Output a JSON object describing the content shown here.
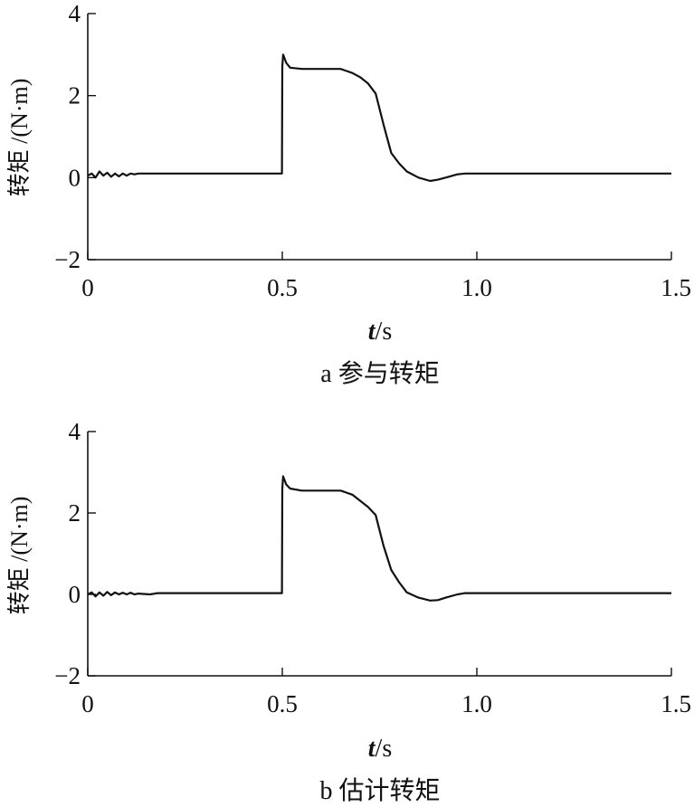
{
  "chart_data": [
    {
      "type": "line",
      "caption": "a 参与转矩",
      "xlabel_var": "t",
      "xlabel_unit": "/s",
      "ylabel": "转矩 /(N·m)",
      "xlim": [
        0,
        1.5
      ],
      "ylim": [
        -2,
        4
      ],
      "x_ticks": [
        0,
        0.5,
        1.0,
        1.5
      ],
      "x_tick_labels": [
        "0",
        "0.5",
        "1.0",
        "1.5"
      ],
      "y_ticks": [
        -2,
        0,
        2,
        4
      ],
      "y_tick_labels": [
        "−2",
        "0",
        "2",
        "4"
      ],
      "series": [
        {
          "x": [
            0,
            0.01,
            0.02,
            0.03,
            0.04,
            0.05,
            0.06,
            0.07,
            0.08,
            0.09,
            0.1,
            0.11,
            0.12,
            0.13,
            0.15,
            0.3,
            0.499,
            0.5,
            0.502,
            0.51,
            0.52,
            0.55,
            0.6,
            0.65,
            0.68,
            0.7,
            0.72,
            0.74,
            0.76,
            0.77,
            0.78,
            0.8,
            0.82,
            0.85,
            0.88,
            0.9,
            0.92,
            0.95,
            0.97,
            1.0,
            1.2,
            1.5
          ],
          "y": [
            0.05,
            0.1,
            0.0,
            0.15,
            0.05,
            0.12,
            0.02,
            0.1,
            0.03,
            0.1,
            0.05,
            0.1,
            0.08,
            0.1,
            0.1,
            0.1,
            0.1,
            2.7,
            3.0,
            2.8,
            2.68,
            2.65,
            2.65,
            2.65,
            2.55,
            2.45,
            2.3,
            2.05,
            1.3,
            0.95,
            0.6,
            0.35,
            0.15,
            0.0,
            -0.08,
            -0.05,
            0.0,
            0.08,
            0.1,
            0.1,
            0.1,
            0.1
          ]
        }
      ]
    },
    {
      "type": "line",
      "caption": "b 估计转矩",
      "xlabel_var": "t",
      "xlabel_unit": "/s",
      "ylabel": "转矩 /(N·m)",
      "xlim": [
        0,
        1.5
      ],
      "ylim": [
        -2,
        4
      ],
      "x_ticks": [
        0,
        0.5,
        1.0,
        1.5
      ],
      "x_tick_labels": [
        "0",
        "0.5",
        "1.0",
        "1.5"
      ],
      "y_ticks": [
        -2,
        0,
        2,
        4
      ],
      "y_tick_labels": [
        "−2",
        "0",
        "2",
        "4"
      ],
      "series": [
        {
          "x": [
            0,
            0.01,
            0.02,
            0.03,
            0.04,
            0.05,
            0.06,
            0.07,
            0.08,
            0.09,
            0.1,
            0.11,
            0.12,
            0.13,
            0.16,
            0.18,
            0.3,
            0.499,
            0.5,
            0.502,
            0.51,
            0.52,
            0.55,
            0.6,
            0.65,
            0.68,
            0.7,
            0.72,
            0.74,
            0.76,
            0.78,
            0.8,
            0.82,
            0.85,
            0.88,
            0.9,
            0.92,
            0.95,
            0.97,
            1.0,
            1.2,
            1.5
          ],
          "y": [
            0.0,
            0.05,
            -0.05,
            0.05,
            -0.03,
            0.06,
            -0.02,
            0.05,
            0.0,
            0.04,
            0.0,
            0.04,
            0.0,
            0.02,
            0.0,
            0.03,
            0.03,
            0.03,
            2.6,
            2.9,
            2.7,
            2.6,
            2.55,
            2.55,
            2.55,
            2.45,
            2.3,
            2.15,
            1.95,
            1.2,
            0.6,
            0.3,
            0.05,
            -0.08,
            -0.15,
            -0.14,
            -0.08,
            0.0,
            0.03,
            0.03,
            0.03,
            0.03
          ]
        }
      ]
    }
  ]
}
